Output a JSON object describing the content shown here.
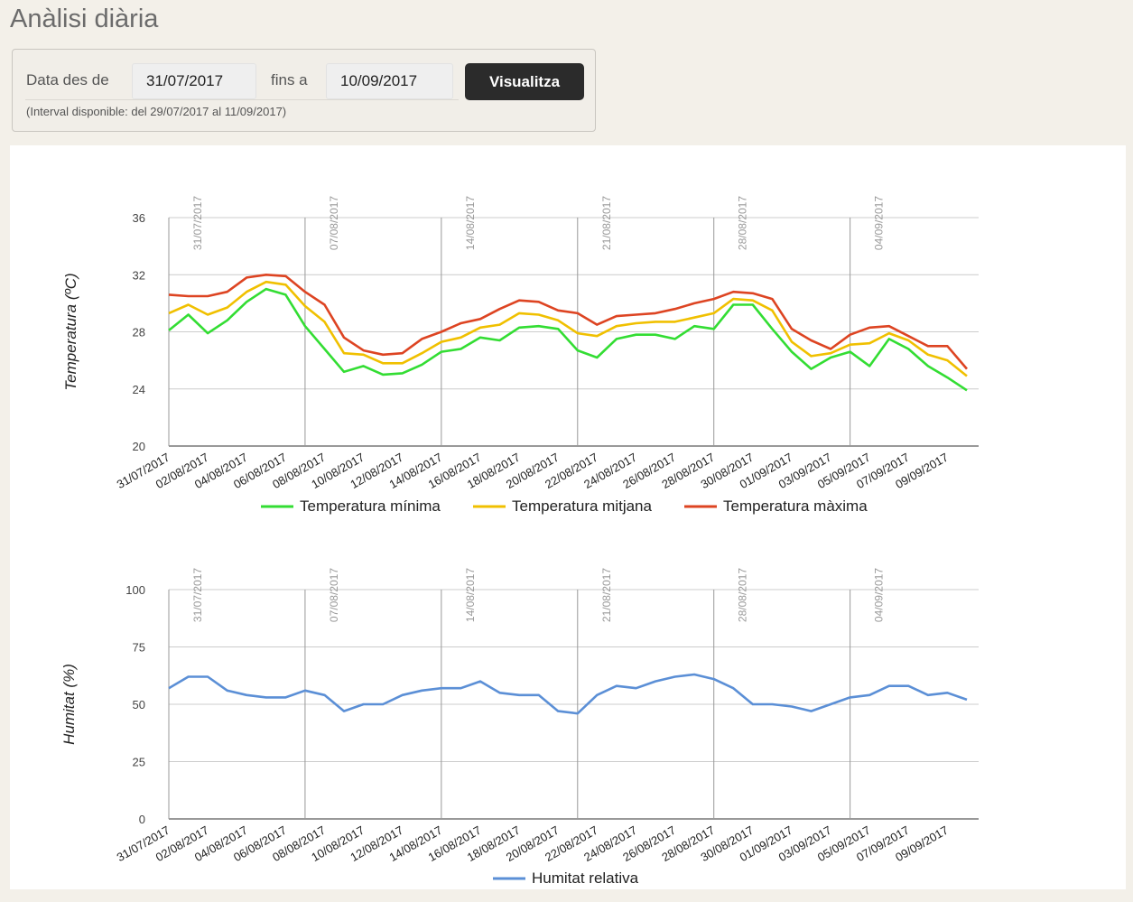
{
  "page": {
    "title": "Anàlisi diària"
  },
  "filter": {
    "from_label": "Data des de",
    "from_value": "31/07/2017",
    "to_label": "fins a",
    "to_value": "10/09/2017",
    "button_label": "Visualitza",
    "note": "(Interval disponible: del 29/07/2017 al 11/09/2017)"
  },
  "colors": {
    "min": "#33dd33",
    "mean": "#f0c000",
    "max": "#dd4422",
    "humidity": "#5b8fd6"
  },
  "chart_data": [
    {
      "type": "line",
      "ylabel": "Temperatura (ºC)",
      "ylim": [
        20,
        36
      ],
      "yticks": [
        20,
        24,
        28,
        32,
        36
      ],
      "x": [
        "31/07/2017",
        "01/08/2017",
        "02/08/2017",
        "03/08/2017",
        "04/08/2017",
        "05/08/2017",
        "06/08/2017",
        "07/08/2017",
        "08/08/2017",
        "09/08/2017",
        "10/08/2017",
        "11/08/2017",
        "12/08/2017",
        "13/08/2017",
        "14/08/2017",
        "15/08/2017",
        "16/08/2017",
        "17/08/2017",
        "18/08/2017",
        "19/08/2017",
        "20/08/2017",
        "21/08/2017",
        "22/08/2017",
        "23/08/2017",
        "24/08/2017",
        "25/08/2017",
        "26/08/2017",
        "27/08/2017",
        "28/08/2017",
        "29/08/2017",
        "30/08/2017",
        "31/08/2017",
        "01/09/2017",
        "02/09/2017",
        "03/09/2017",
        "04/09/2017",
        "05/09/2017",
        "06/09/2017",
        "07/09/2017",
        "08/09/2017",
        "09/09/2017",
        "10/09/2017"
      ],
      "xtick_labels": [
        "31/07/2017",
        "02/08/2017",
        "04/08/2017",
        "06/08/2017",
        "08/08/2017",
        "10/08/2017",
        "12/08/2017",
        "14/08/2017",
        "16/08/2017",
        "18/08/2017",
        "20/08/2017",
        "22/08/2017",
        "24/08/2017",
        "26/08/2017",
        "28/08/2017",
        "30/08/2017",
        "01/09/2017",
        "03/09/2017",
        "05/09/2017",
        "07/09/2017",
        "09/09/2017"
      ],
      "week_markers": [
        "31/07/2017",
        "07/08/2017",
        "14/08/2017",
        "21/08/2017",
        "28/08/2017",
        "04/09/2017"
      ],
      "series": [
        {
          "name": "Temperatura mínima",
          "color_key": "min",
          "values": [
            28.1,
            29.2,
            27.9,
            28.8,
            30.1,
            31.0,
            30.6,
            28.4,
            26.8,
            25.2,
            25.6,
            25.0,
            25.1,
            25.7,
            26.6,
            26.8,
            27.6,
            27.4,
            28.3,
            28.4,
            28.2,
            26.7,
            26.2,
            27.5,
            27.8,
            27.8,
            27.5,
            28.4,
            28.2,
            29.9,
            29.9,
            28.2,
            26.6,
            25.4,
            26.2,
            26.6,
            25.6,
            27.5,
            26.8,
            25.6,
            24.8,
            23.9
          ]
        },
        {
          "name": "Temperatura mitjana",
          "color_key": "mean",
          "values": [
            29.3,
            29.9,
            29.2,
            29.7,
            30.8,
            31.5,
            31.3,
            29.8,
            28.7,
            26.5,
            26.4,
            25.8,
            25.8,
            26.5,
            27.3,
            27.6,
            28.3,
            28.5,
            29.3,
            29.2,
            28.8,
            27.9,
            27.7,
            28.4,
            28.6,
            28.7,
            28.7,
            29.0,
            29.3,
            30.3,
            30.2,
            29.5,
            27.3,
            26.3,
            26.5,
            27.1,
            27.2,
            27.9,
            27.4,
            26.4,
            26.0,
            24.9
          ]
        },
        {
          "name": "Temperatura màxima",
          "color_key": "max",
          "values": [
            30.6,
            30.5,
            30.5,
            30.8,
            31.8,
            32.0,
            31.9,
            30.8,
            29.9,
            27.6,
            26.7,
            26.4,
            26.5,
            27.5,
            28.0,
            28.6,
            28.9,
            29.6,
            30.2,
            30.1,
            29.5,
            29.3,
            28.5,
            29.1,
            29.2,
            29.3,
            29.6,
            30.0,
            30.3,
            30.8,
            30.7,
            30.3,
            28.2,
            27.4,
            26.8,
            27.8,
            28.3,
            28.4,
            27.7,
            27.0,
            27.0,
            25.4
          ]
        }
      ]
    },
    {
      "type": "line",
      "ylabel": "Humitat (%)",
      "ylim": [
        0,
        100
      ],
      "yticks": [
        0,
        25,
        50,
        75,
        100
      ],
      "week_markers": [
        "31/07/2017",
        "07/08/2017",
        "14/08/2017",
        "21/08/2017",
        "28/08/2017",
        "04/09/2017"
      ],
      "series": [
        {
          "name": "Humitat relativa",
          "color_key": "humidity",
          "values": [
            57,
            62,
            62,
            56,
            54,
            53,
            53,
            56,
            54,
            47,
            50,
            50,
            54,
            56,
            57,
            57,
            60,
            55,
            54,
            54,
            47,
            46,
            54,
            58,
            57,
            60,
            62,
            63,
            61,
            57,
            50,
            50,
            49,
            47,
            50,
            53,
            54,
            58,
            58,
            54,
            55,
            52
          ]
        }
      ]
    }
  ]
}
